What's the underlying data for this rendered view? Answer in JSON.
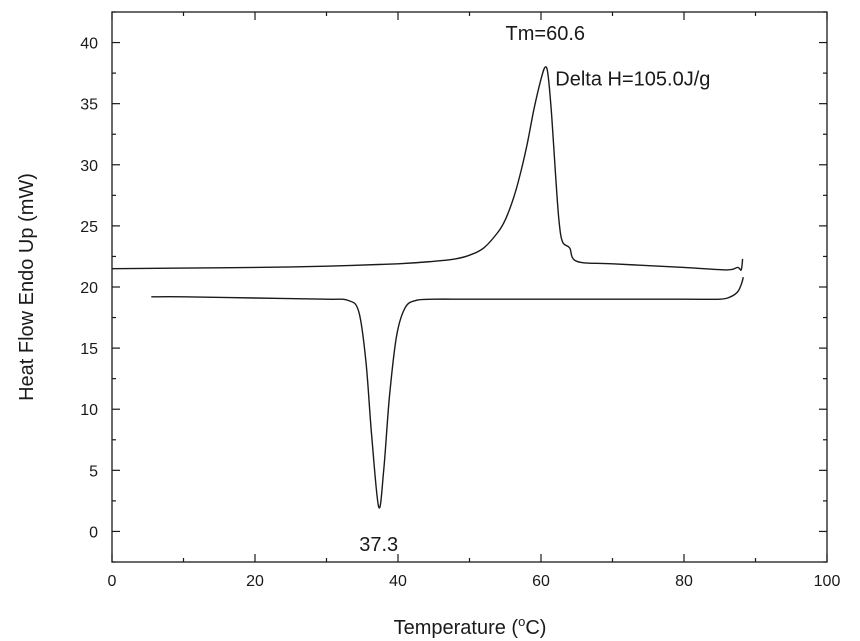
{
  "chart_data": {
    "type": "line",
    "title": "",
    "xlabel_main": "Temperature (",
    "xlabel_sup": "o",
    "xlabel_unit": "C)",
    "ylabel": "Heat Flow Endo Up (mW)",
    "xlim": [
      0,
      100
    ],
    "ylim": [
      -2.5,
      42.5
    ],
    "x_ticks": [
      0,
      20,
      40,
      60,
      80,
      100
    ],
    "y_ticks": [
      0,
      5,
      10,
      15,
      20,
      25,
      30,
      35,
      40
    ],
    "grid": false,
    "legend": "none",
    "line_color": "#1a1a1a",
    "series": [
      {
        "x": [
          0,
          10,
          20,
          30,
          40,
          45,
          48,
          50,
          52,
          54,
          55,
          56,
          57,
          58,
          59,
          60,
          60.6,
          61,
          61.5,
          62,
          62.5,
          63,
          64,
          65,
          70,
          80,
          86,
          87.5,
          88,
          88.2
        ],
        "values": [
          21.5,
          21.55,
          21.6,
          21.7,
          21.9,
          22.1,
          22.3,
          22.6,
          23.2,
          24.5,
          25.5,
          27.0,
          29.0,
          31.5,
          34.5,
          37.0,
          38.0,
          37.3,
          34.0,
          29.5,
          25.5,
          23.7,
          23.2,
          22.1,
          21.9,
          21.6,
          21.4,
          21.6,
          21.4,
          22.3
        ]
      },
      {
        "x": [
          5.5,
          10,
          20,
          30,
          33,
          34.5,
          35.5,
          36.3,
          37.3,
          38,
          38.8,
          39.8,
          41,
          42.5,
          45,
          50,
          60,
          70,
          80,
          85,
          86.5,
          87.5,
          88,
          88.3
        ],
        "values": [
          19.2,
          19.2,
          19.1,
          19.0,
          18.9,
          18.0,
          14.0,
          8.0,
          2.0,
          5.0,
          11.0,
          16.0,
          18.3,
          18.9,
          19.0,
          19.0,
          19.0,
          19.0,
          19.0,
          19.0,
          19.2,
          19.6,
          20.2,
          20.8
        ]
      }
    ],
    "annotations": [
      {
        "text": "Tm=60.6",
        "x": 60.6,
        "y": 40.2
      },
      {
        "text": "Delta H=105.0J/g",
        "x": 62,
        "y": 36.5
      },
      {
        "text": "37.3",
        "x": 37.3,
        "y": -1.6
      }
    ]
  }
}
